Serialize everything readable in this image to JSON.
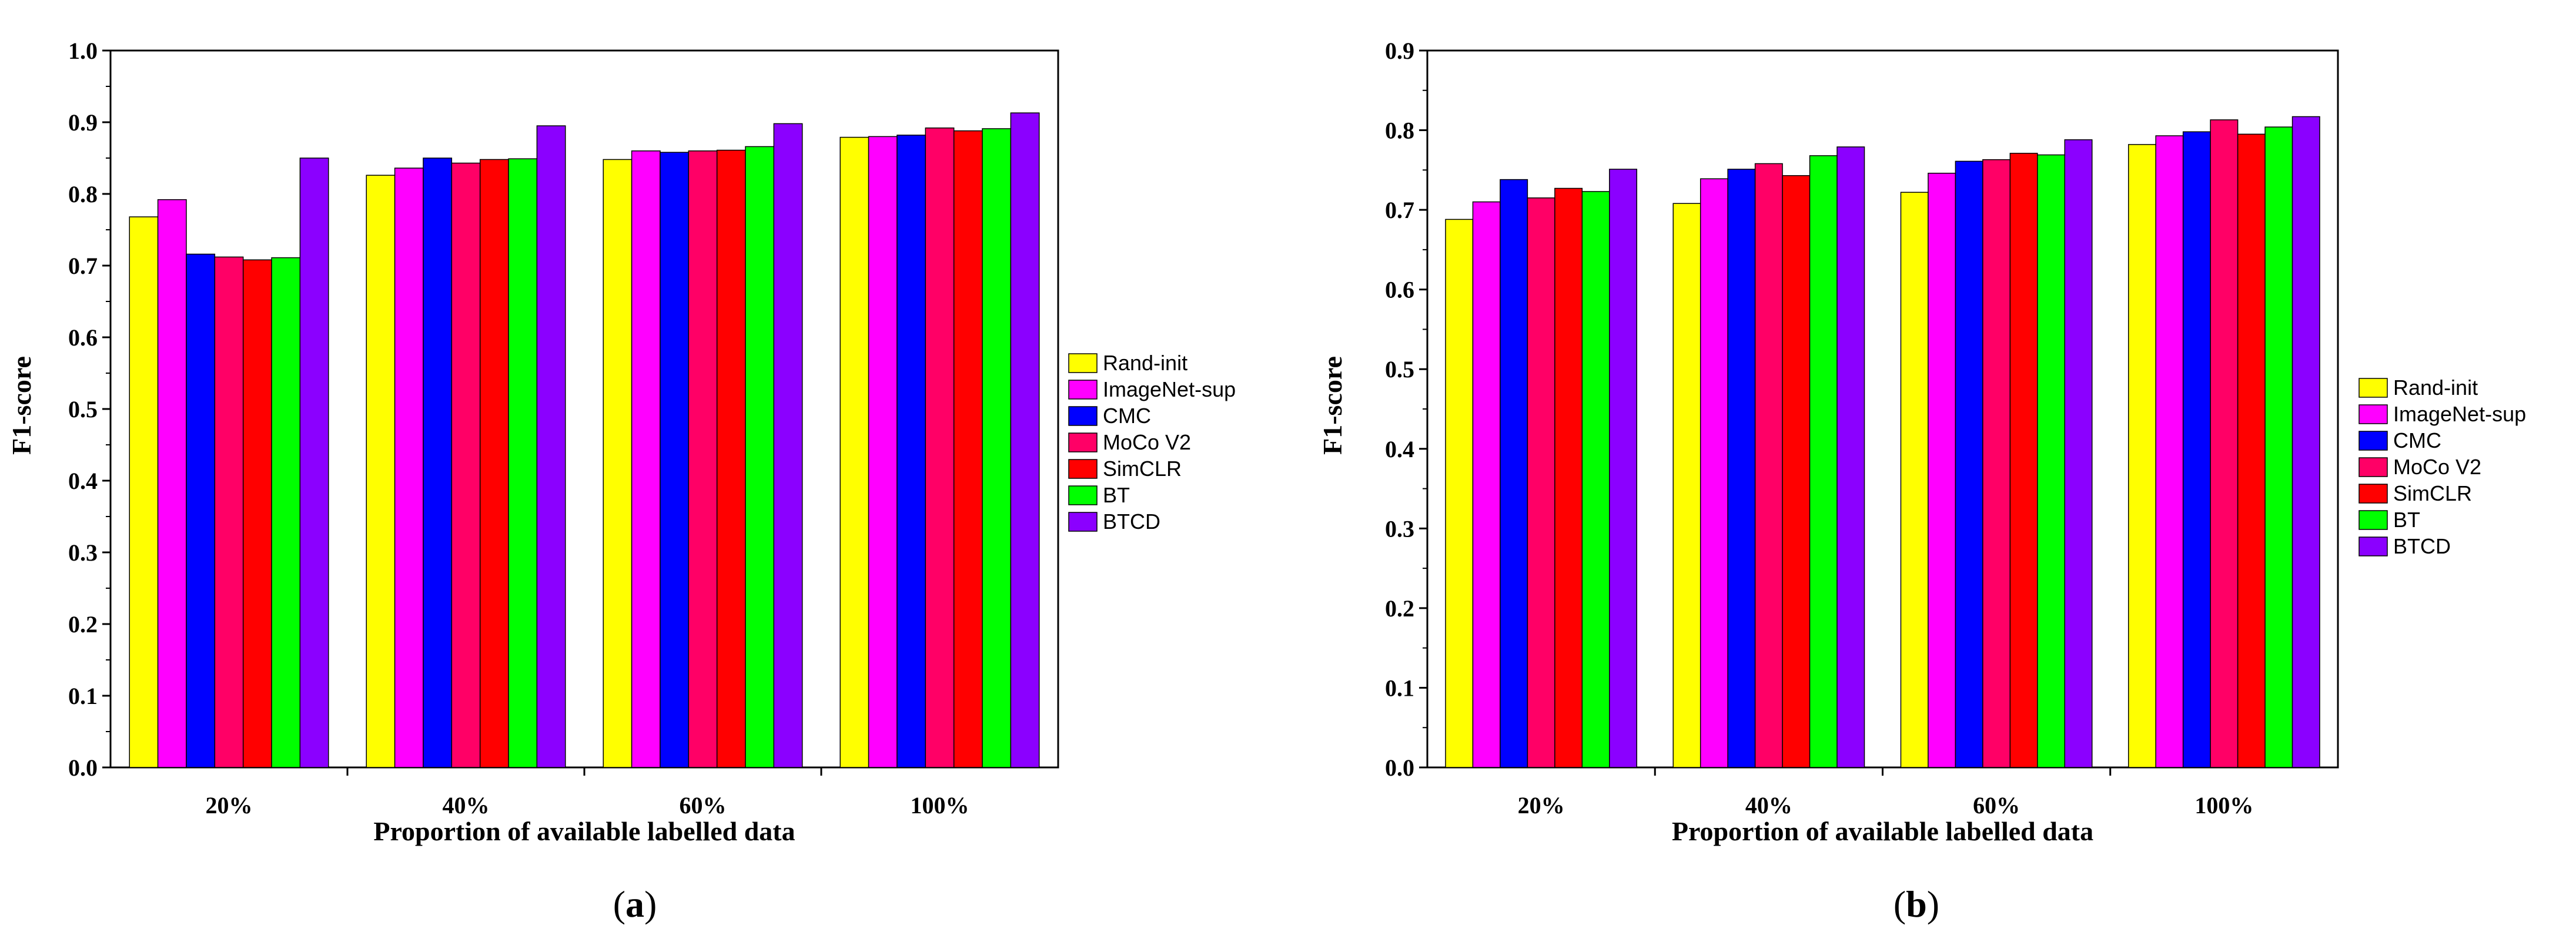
{
  "chart_data": [
    {
      "type": "bar",
      "panel_label": {
        "open": "(",
        "letter": "a",
        "close": ")"
      },
      "xlabel": "Proportion of available labelled data",
      "ylabel": "F1-score",
      "ylim": [
        0,
        1.0
      ],
      "yticks": [
        0.0,
        0.1,
        0.2,
        0.3,
        0.4,
        0.5,
        0.6,
        0.7,
        0.8,
        0.9,
        1.0
      ],
      "ytick_labels": [
        "0.0",
        "0.1",
        "0.2",
        "0.3",
        "0.4",
        "0.5",
        "0.6",
        "0.7",
        "0.8",
        "0.9",
        "1.0"
      ],
      "categories": [
        "20%",
        "40%",
        "60%",
        "100%"
      ],
      "legend_position": "right",
      "series": [
        {
          "name": "Rand-init",
          "color": "#ffff00",
          "values": [
            0.768,
            0.826,
            0.848,
            0.879
          ]
        },
        {
          "name": "ImageNet-sup",
          "color": "#ff00ff",
          "values": [
            0.792,
            0.836,
            0.86,
            0.88
          ]
        },
        {
          "name": "CMC",
          "color": "#0000ff",
          "values": [
            0.716,
            0.85,
            0.858,
            0.882
          ]
        },
        {
          "name": "MoCo V2",
          "color": "#ff0066",
          "values": [
            0.712,
            0.843,
            0.86,
            0.892
          ]
        },
        {
          "name": "SimCLR",
          "color": "#ff0000",
          "values": [
            0.708,
            0.848,
            0.861,
            0.888
          ]
        },
        {
          "name": "BT",
          "color": "#00ff00",
          "values": [
            0.711,
            0.849,
            0.866,
            0.891
          ]
        },
        {
          "name": "BTCD",
          "color": "#8b00ff",
          "values": [
            0.85,
            0.895,
            0.898,
            0.913
          ]
        }
      ]
    },
    {
      "type": "bar",
      "panel_label": {
        "open": "(",
        "letter": "b",
        "close": ")"
      },
      "xlabel": "Proportion of available labelled data",
      "ylabel": "F1-score",
      "ylim": [
        0,
        0.9
      ],
      "yticks": [
        0.0,
        0.1,
        0.2,
        0.3,
        0.4,
        0.5,
        0.6,
        0.7,
        0.8,
        0.9
      ],
      "ytick_labels": [
        "0.0",
        "0.1",
        "0.2",
        "0.3",
        "0.4",
        "0.5",
        "0.6",
        "0.7",
        "0.8",
        "0.9"
      ],
      "categories": [
        "20%",
        "40%",
        "60%",
        "100%"
      ],
      "legend_position": "right",
      "series": [
        {
          "name": "Rand-init",
          "color": "#ffff00",
          "values": [
            0.688,
            0.708,
            0.722,
            0.782
          ]
        },
        {
          "name": "ImageNet-sup",
          "color": "#ff00ff",
          "values": [
            0.71,
            0.739,
            0.746,
            0.793
          ]
        },
        {
          "name": "CMC",
          "color": "#0000ff",
          "values": [
            0.738,
            0.751,
            0.761,
            0.798
          ]
        },
        {
          "name": "MoCo V2",
          "color": "#ff0066",
          "values": [
            0.715,
            0.758,
            0.763,
            0.813
          ]
        },
        {
          "name": "SimCLR",
          "color": "#ff0000",
          "values": [
            0.727,
            0.743,
            0.771,
            0.795
          ]
        },
        {
          "name": "BT",
          "color": "#00ff00",
          "values": [
            0.723,
            0.768,
            0.769,
            0.804
          ]
        },
        {
          "name": "BTCD",
          "color": "#8b00ff",
          "values": [
            0.751,
            0.779,
            0.788,
            0.817
          ]
        }
      ]
    }
  ]
}
